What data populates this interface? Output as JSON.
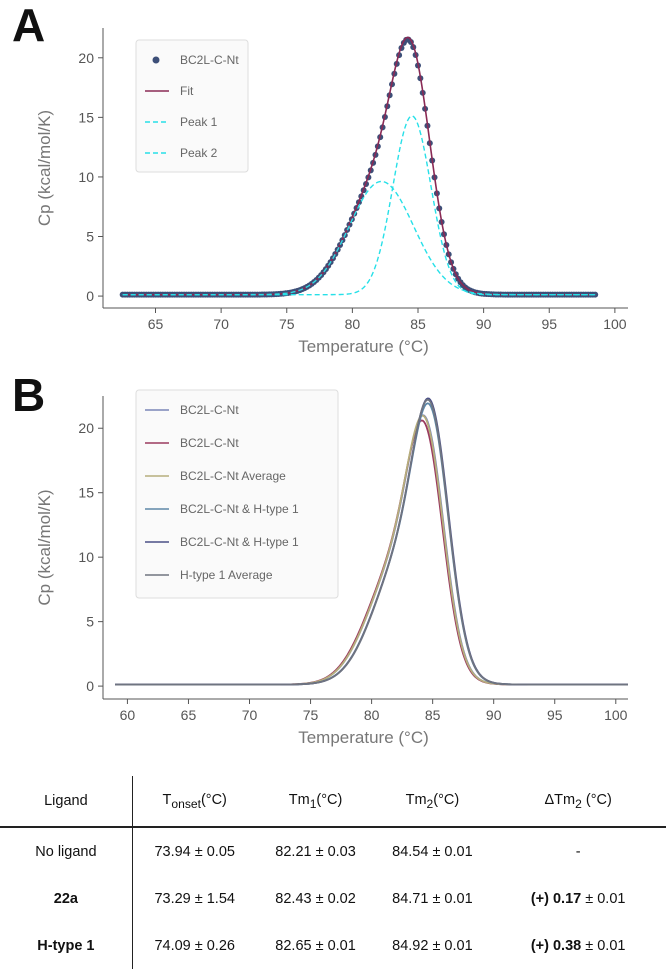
{
  "panels": {
    "a_label": "A",
    "b_label": "B"
  },
  "chart_data": [
    {
      "type": "line",
      "panel": "A",
      "xlabel": "Temperature (°C)",
      "ylabel": "Cp (kcal/mol/K)",
      "xlim": [
        61,
        101
      ],
      "ylim": [
        -1,
        22.5
      ],
      "xticks": [
        65,
        70,
        75,
        80,
        85,
        90,
        95,
        100
      ],
      "yticks": [
        0,
        5,
        10,
        15,
        20
      ],
      "x_range": [
        62.5,
        98.5
      ],
      "legend_position": "top-left",
      "series": [
        {
          "name": "BC2L-C-Nt",
          "style": "markers",
          "color": "#3d4f78",
          "peaks": [
            {
              "center": 82.21,
              "height": 9.5,
              "sigma": 2.45
            },
            {
              "center": 84.54,
              "height": 15.0,
              "sigma": 1.45
            }
          ],
          "noise": 0.0
        },
        {
          "name": "Fit",
          "style": "line",
          "color": "#8a2a55",
          "peaks": [
            {
              "center": 82.21,
              "height": 9.6,
              "sigma": 2.45
            },
            {
              "center": 84.54,
              "height": 15.1,
              "sigma": 1.45
            }
          ]
        },
        {
          "name": "Peak 1",
          "style": "dashed",
          "color": "#27e0e8",
          "peaks": [
            {
              "center": 82.21,
              "height": 9.5,
              "sigma": 2.45
            }
          ]
        },
        {
          "name": "Peak 2",
          "style": "dashed",
          "color": "#27e0e8",
          "peaks": [
            {
              "center": 84.54,
              "height": 15.0,
              "sigma": 1.45
            }
          ]
        }
      ]
    },
    {
      "type": "line",
      "panel": "B",
      "xlabel": "Temperature (°C)",
      "ylabel": "Cp (kcal/mol/K)",
      "xlim": [
        58,
        101
      ],
      "ylim": [
        -1,
        22.5
      ],
      "xticks": [
        60,
        65,
        70,
        75,
        80,
        85,
        90,
        95,
        100
      ],
      "yticks": [
        0,
        5,
        10,
        15,
        20
      ],
      "x_range": [
        59,
        101
      ],
      "legend_position": "top-left",
      "series": [
        {
          "name": "BC2L-C-Nt",
          "style": "line",
          "color": "#7a86b8",
          "peaks": [
            {
              "center": 82.21,
              "height": 9.3,
              "sigma": 2.45
            },
            {
              "center": 84.54,
              "height": 14.6,
              "sigma": 1.45
            }
          ]
        },
        {
          "name": "BC2L-C-Nt",
          "style": "line",
          "color": "#9a3a5e",
          "peaks": [
            {
              "center": 82.1,
              "height": 9.2,
              "sigma": 2.45
            },
            {
              "center": 84.45,
              "height": 14.3,
              "sigma": 1.45
            }
          ]
        },
        {
          "name": "BC2L-C-Nt Average",
          "style": "line",
          "color": "#b6ae7c",
          "peaks": [
            {
              "center": 82.2,
              "height": 9.3,
              "sigma": 2.45
            },
            {
              "center": 84.5,
              "height": 14.5,
              "sigma": 1.45
            }
          ]
        },
        {
          "name": "BC2L-C-Nt & H-type 1",
          "style": "line",
          "color": "#5e88a8",
          "peaks": [
            {
              "center": 82.6,
              "height": 9.6,
              "sigma": 2.45
            },
            {
              "center": 84.92,
              "height": 15.3,
              "sigma": 1.45
            }
          ]
        },
        {
          "name": "BC2L-C-Nt & H-type 1",
          "style": "line",
          "color": "#4b4f86",
          "peaks": [
            {
              "center": 82.65,
              "height": 9.8,
              "sigma": 2.45
            },
            {
              "center": 84.95,
              "height": 15.5,
              "sigma": 1.45
            }
          ]
        },
        {
          "name": "H-type 1 Average",
          "style": "line",
          "color": "#6f7480",
          "peaks": [
            {
              "center": 82.65,
              "height": 9.7,
              "sigma": 2.45
            },
            {
              "center": 84.92,
              "height": 15.4,
              "sigma": 1.45
            }
          ]
        }
      ]
    }
  ],
  "table": {
    "headers": {
      "ligand": "Ligand",
      "tonset_main": "T",
      "tonset_sub": "onset",
      "tonset_unit": "(°C)",
      "tm1_main": "Tm",
      "tm1_sub": "1",
      "tm1_unit": "(°C)",
      "tm2_main": "Tm",
      "tm2_sub": "2",
      "tm2_unit": "(°C)",
      "dtm2_main": "ΔTm",
      "dtm2_sub": "2",
      "dtm2_unit": " (°C)"
    },
    "rows": [
      {
        "ligand": "No ligand",
        "tonset": "73.94 ± 0.05",
        "tm1": "82.21 ± 0.03",
        "tm2": "84.54 ± 0.01",
        "dtm2_bold": "-",
        "dtm2_rest": ""
      },
      {
        "ligand": "22a",
        "tonset": "73.29 ± 1.54",
        "tm1": "82.43 ± 0.02",
        "tm2": "84.71 ± 0.01",
        "dtm2_bold": "(+) 0.17",
        "dtm2_rest": " ± 0.01"
      },
      {
        "ligand": "H-type 1",
        "tonset": "74.09 ± 0.26",
        "tm1": "82.65 ± 0.01",
        "tm2": "84.92 ± 0.01",
        "dtm2_bold": "(+) 0.38",
        "dtm2_rest": " ± 0.01"
      }
    ]
  }
}
